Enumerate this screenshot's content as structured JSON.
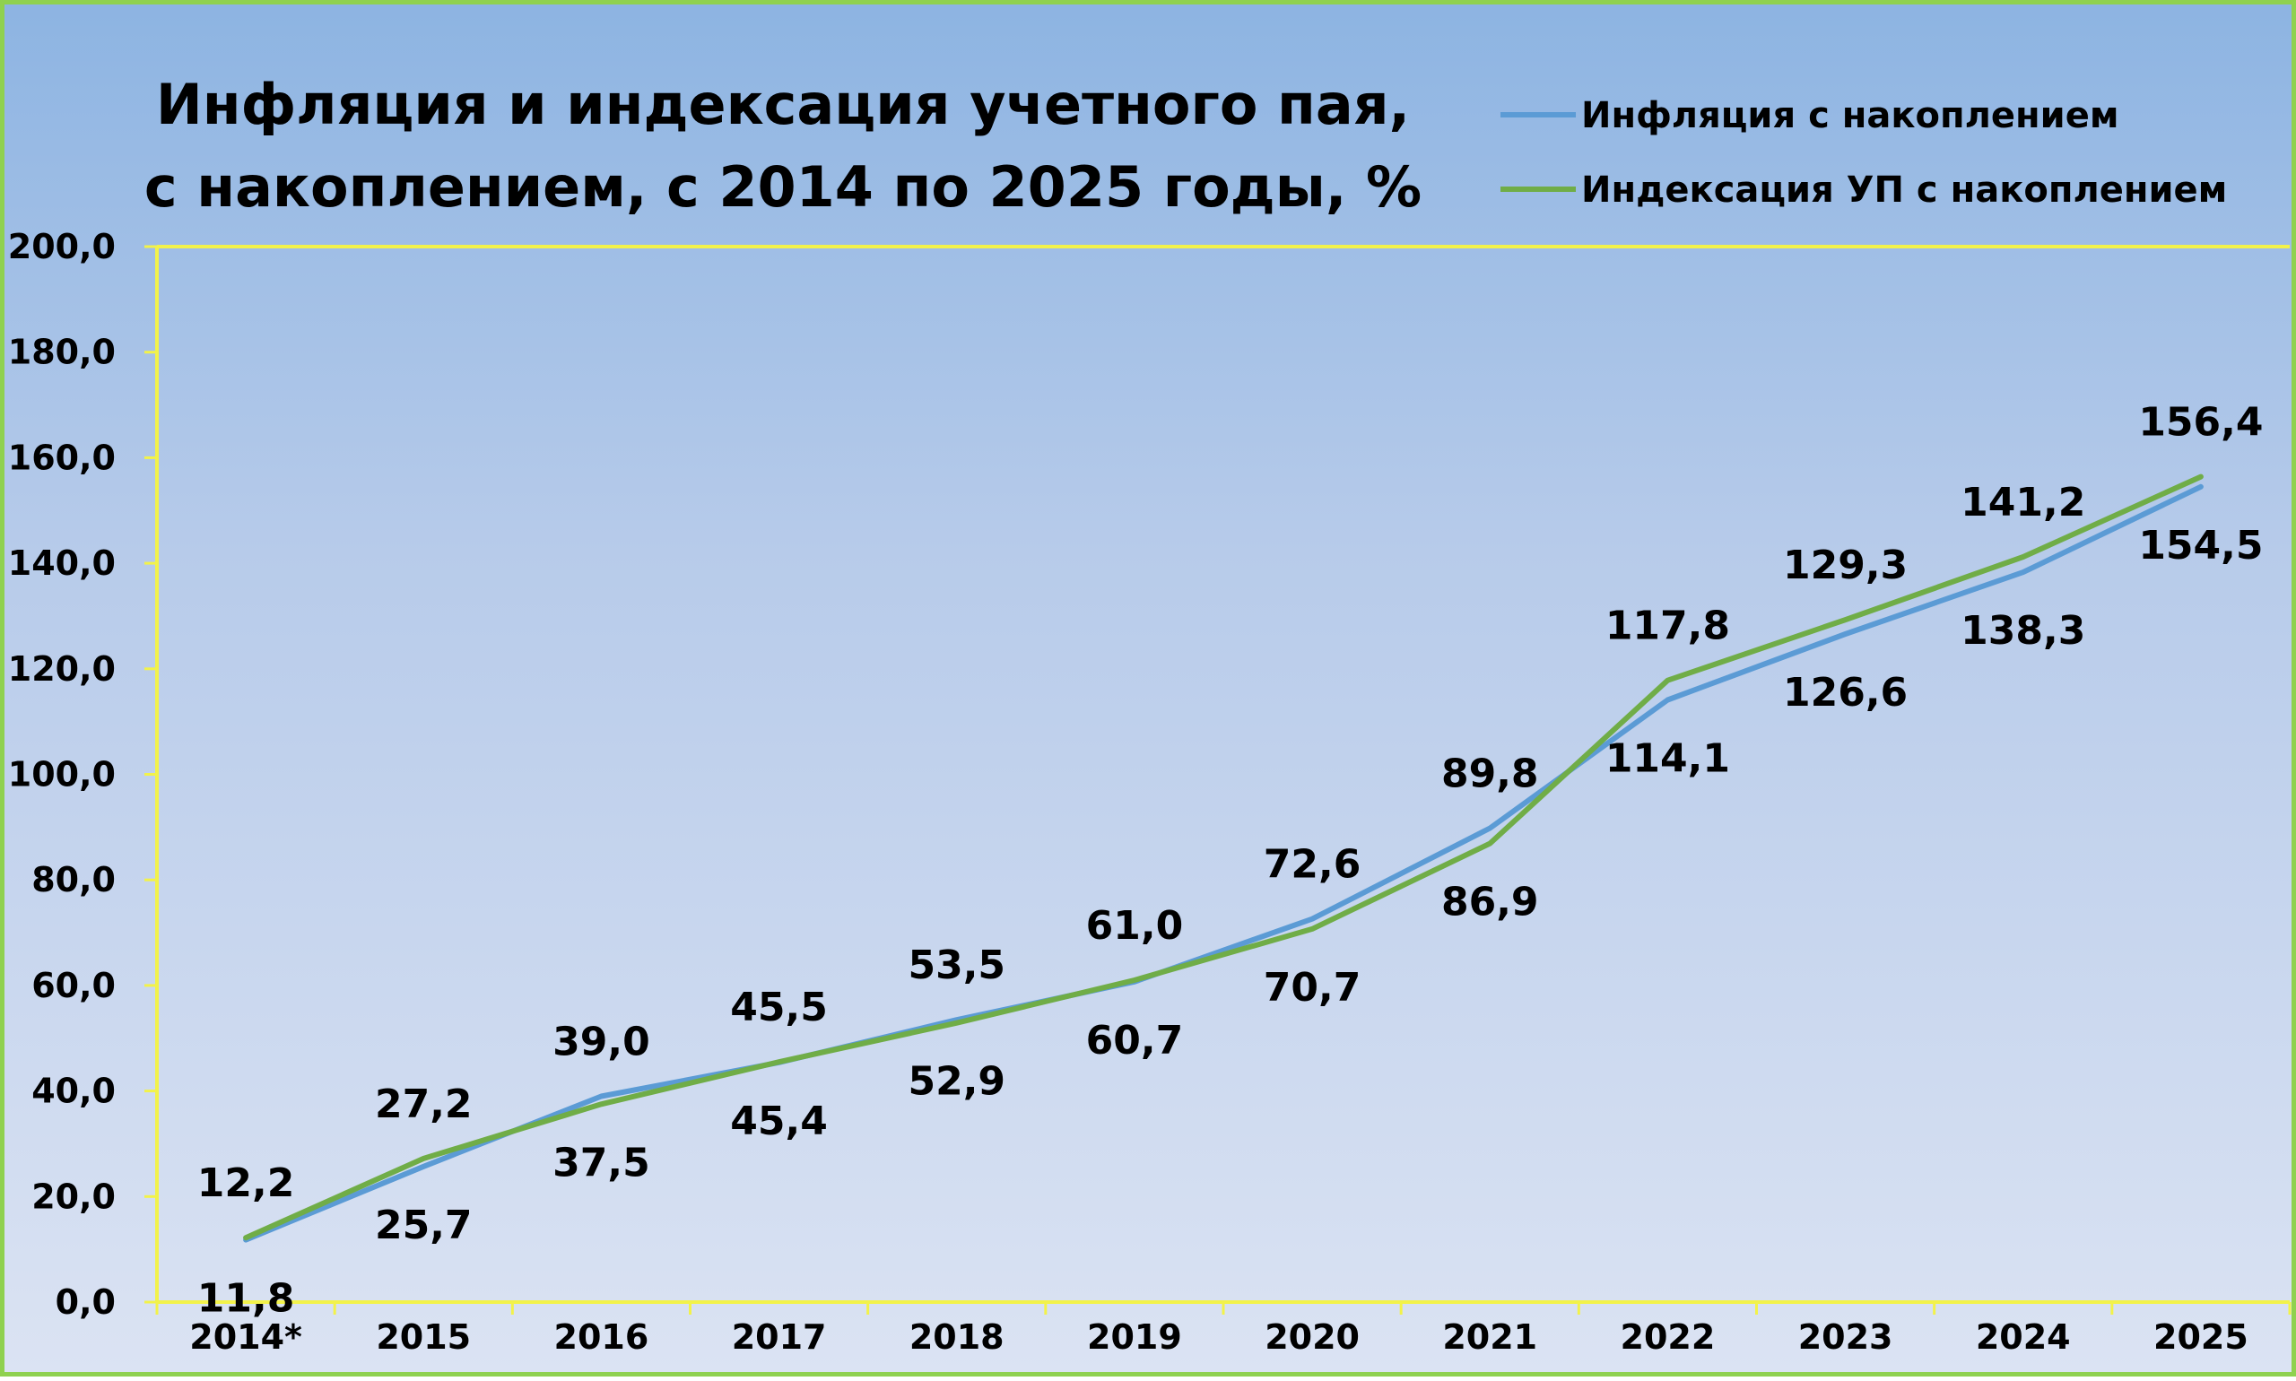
{
  "chart_data": {
    "type": "line",
    "title": "Инфляция и индексация учетного пая, с накоплением, с 2014 по 2025 годы, %",
    "title_lines": [
      "Инфляция и индексация учетного пая,",
      "с накоплением, с 2014 по 2025 годы, %"
    ],
    "categories": [
      "2014*",
      "2015",
      "2016",
      "2017",
      "2018",
      "2019",
      "2020",
      "2021",
      "2022",
      "2023",
      "2024",
      "2025"
    ],
    "series": [
      {
        "name": "Инфляция с накоплением",
        "color": "#5b9bd5",
        "values": [
          11.8,
          25.7,
          39.0,
          45.4,
          53.5,
          60.7,
          72.6,
          89.8,
          114.1,
          126.6,
          138.3,
          154.5
        ],
        "labels": [
          "11,8",
          "25,7",
          "39,0",
          "45,4",
          "53,5",
          "60,7",
          "72,6",
          "89,8",
          "114,1",
          "126,6",
          "138,3",
          "154,5"
        ]
      },
      {
        "name": "Индексация УП с накоплением",
        "color": "#70ad47",
        "values": [
          12.2,
          27.2,
          37.5,
          45.5,
          52.9,
          61.0,
          70.7,
          86.9,
          117.8,
          129.3,
          141.2,
          156.4
        ],
        "labels": [
          "12,2",
          "27,2",
          "37,5",
          "45,5",
          "52,9",
          "61,0",
          "70,7",
          "86,9",
          "117,8",
          "129,3",
          "141,2",
          "156,4"
        ]
      }
    ],
    "ylim": [
      0,
      200
    ],
    "yticks": [
      0,
      20,
      40,
      60,
      80,
      100,
      120,
      140,
      160,
      180,
      200
    ],
    "ytick_labels": [
      "0,0",
      "20,0",
      "40,0",
      "60,0",
      "80,0",
      "100,0",
      "120,0",
      "140,0",
      "160,0",
      "180,0",
      "200,0"
    ],
    "grid": false,
    "legend_position": "top-right",
    "axis_color": "#f2f24a"
  }
}
